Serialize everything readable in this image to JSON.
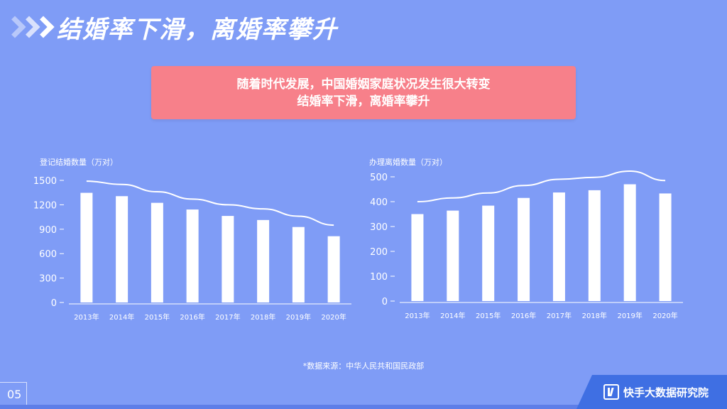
{
  "header": {
    "title": "结婚率下滑，离婚率攀升"
  },
  "banner": {
    "line1": "随着时代发展，中国婚姻家庭状况发生很大转变",
    "line2": "结婚率下滑，离婚率攀升"
  },
  "footer": {
    "source": "*数据来源：中华人民共和国民政部",
    "page_number": "05",
    "brand": "快手大数据研究院"
  },
  "colors": {
    "background": "#7f9cf6",
    "banner": "#f7808a",
    "bars": "#ffffff",
    "line": "#ffffff",
    "brand": "#3f6fe3"
  },
  "chart_data": [
    {
      "type": "bar",
      "title": "",
      "ylabel": "登记结婚数量（万对）",
      "categories": [
        "2013年",
        "2014年",
        "2015年",
        "2016年",
        "2017年",
        "2018年",
        "2019年",
        "2020年"
      ],
      "values": [
        1347,
        1306,
        1224,
        1142,
        1063,
        1013,
        927,
        814
      ],
      "overlay_line": [
        1490,
        1450,
        1360,
        1270,
        1200,
        1150,
        1060,
        950
      ],
      "yticks": [
        0,
        300,
        600,
        900,
        1200,
        1500
      ],
      "ylim": [
        0,
        1500
      ],
      "grid": false
    },
    {
      "type": "bar",
      "title": "",
      "ylabel": "办理离婚数量（万对）",
      "categories": [
        "2013年",
        "2014年",
        "2015年",
        "2016年",
        "2017年",
        "2018年",
        "2019年",
        "2020年"
      ],
      "values": [
        350,
        364,
        384,
        415,
        437,
        446,
        470,
        433
      ],
      "overlay_line": [
        400,
        415,
        435,
        465,
        490,
        498,
        523,
        485
      ],
      "yticks": [
        0,
        100,
        200,
        300,
        400,
        500
      ],
      "ylim": [
        0,
        500
      ],
      "grid": false
    }
  ]
}
